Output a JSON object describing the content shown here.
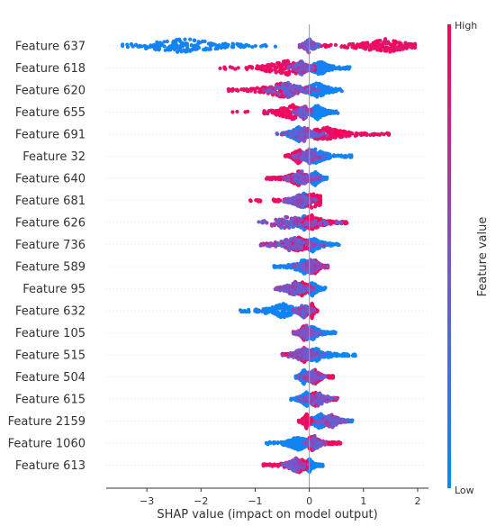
{
  "chart_data": {
    "type": "scatter",
    "subtype": "shap-beeswarm",
    "title": "",
    "xlabel": "SHAP value (impact on model output)",
    "xlim": [
      -3.75,
      2.2
    ],
    "xticks": [
      -3,
      -2,
      -1,
      0,
      1,
      2
    ],
    "xtick_labels": [
      "−3",
      "−2",
      "−1",
      "0",
      "1",
      "2"
    ],
    "colorbar": {
      "label": "Feature value",
      "high_label": "High",
      "low_label": "Low",
      "high_color": "#ff0052",
      "low_color": "#008bfb"
    },
    "features": [
      {
        "name": "Feature 637",
        "low_range": [
          -3.45,
          -0.6
        ],
        "high_range": [
          0.15,
          1.95
        ],
        "mid_range": [
          -0.2,
          0.2
        ],
        "low_peak": -2.3,
        "high_peak": 1.4
      },
      {
        "name": "Feature 618",
        "low_range": [
          0.05,
          0.75
        ],
        "high_range": [
          -1.65,
          0.1
        ],
        "mid_range": [
          -0.4,
          0.1
        ],
        "low_peak": 0.2,
        "high_peak": -0.4
      },
      {
        "name": "Feature 620",
        "low_range": [
          -0.3,
          0.6
        ],
        "high_range": [
          -1.5,
          0.0
        ],
        "mid_range": [
          -1.0,
          0.2
        ],
        "low_peak": 0.15,
        "high_peak": -0.5
      },
      {
        "name": "Feature 655",
        "low_range": [
          0.0,
          0.55
        ],
        "high_range": [
          -1.45,
          -0.1
        ],
        "mid_range": [
          -0.3,
          0.1
        ],
        "low_peak": 0.15,
        "high_peak": -0.3
      },
      {
        "name": "Feature 691",
        "low_range": [
          -0.5,
          0.15
        ],
        "high_range": [
          0.1,
          1.5
        ],
        "mid_range": [
          -0.6,
          0.4
        ],
        "low_peak": -0.2,
        "high_peak": 0.3
      },
      {
        "name": "Feature 32",
        "low_range": [
          -0.1,
          0.8
        ],
        "high_range": [
          -0.45,
          0.0
        ],
        "mid_range": [
          -0.3,
          0.3
        ],
        "low_peak": 0.1,
        "high_peak": -0.2
      },
      {
        "name": "Feature 640",
        "low_range": [
          -0.05,
          0.35
        ],
        "high_range": [
          -0.8,
          -0.05
        ],
        "mid_range": [
          -0.5,
          0.2
        ],
        "low_peak": 0.1,
        "high_peak": -0.2
      },
      {
        "name": "Feature 681",
        "low_range": [
          -0.45,
          0.1
        ],
        "high_range": [
          -1.1,
          0.2
        ],
        "mid_range": [
          -0.5,
          0.15
        ],
        "low_peak": -0.1,
        "high_peak": 0.05
      },
      {
        "name": "Feature 626",
        "low_range": [
          -0.6,
          0.1
        ],
        "high_range": [
          -0.2,
          0.7
        ],
        "mid_range": [
          -1.3,
          0.6
        ],
        "low_peak": -0.1,
        "high_peak": 0.05
      },
      {
        "name": "Feature 736",
        "low_range": [
          -0.15,
          0.55
        ],
        "high_range": [
          -0.9,
          0.0
        ],
        "mid_range": [
          -0.9,
          0.3
        ],
        "low_peak": 0.05,
        "high_peak": -0.2
      },
      {
        "name": "Feature 589",
        "low_range": [
          -0.65,
          0.1
        ],
        "high_range": [
          0.0,
          0.35
        ],
        "mid_range": [
          -0.3,
          0.35
        ],
        "low_peak": -0.1,
        "high_peak": 0.1
      },
      {
        "name": "Feature 95",
        "low_range": [
          -0.1,
          0.3
        ],
        "high_range": [
          -0.6,
          0.0
        ],
        "mid_range": [
          -0.65,
          0.1
        ],
        "low_peak": 0.05,
        "high_peak": -0.15
      },
      {
        "name": "Feature 632",
        "low_range": [
          -1.3,
          -0.2
        ],
        "high_range": [
          0.0,
          0.15
        ],
        "mid_range": [
          -0.3,
          0.1
        ],
        "low_peak": -0.5,
        "high_peak": 0.05
      },
      {
        "name": "Feature 105",
        "low_range": [
          -0.05,
          0.5
        ],
        "high_range": [
          -0.3,
          0.0
        ],
        "mid_range": [
          -0.3,
          0.2
        ],
        "low_peak": 0.05,
        "high_peak": -0.1
      },
      {
        "name": "Feature 515",
        "low_range": [
          0.0,
          0.85
        ],
        "high_range": [
          -0.5,
          0.0
        ],
        "mid_range": [
          -0.5,
          0.3
        ],
        "low_peak": 0.1,
        "high_peak": -0.1
      },
      {
        "name": "Feature 504",
        "low_range": [
          -0.25,
          0.05
        ],
        "high_range": [
          0.0,
          0.45
        ],
        "mid_range": [
          -0.2,
          0.3
        ],
        "low_peak": -0.1,
        "high_peak": 0.1
      },
      {
        "name": "Feature 615",
        "low_range": [
          -0.35,
          0.1
        ],
        "high_range": [
          0.05,
          0.55
        ],
        "mid_range": [
          -0.2,
          0.5
        ],
        "low_peak": -0.05,
        "high_peak": 0.1
      },
      {
        "name": "Feature 2159",
        "low_range": [
          0.05,
          0.8
        ],
        "high_range": [
          -0.2,
          0.05
        ],
        "mid_range": [
          0.1,
          0.7
        ],
        "low_peak": 0.2,
        "high_peak": -0.05
      },
      {
        "name": "Feature 1060",
        "low_range": [
          -0.8,
          0.0
        ],
        "high_range": [
          0.0,
          0.6
        ],
        "mid_range": [
          -0.1,
          0.3
        ],
        "low_peak": -0.2,
        "high_peak": 0.05
      },
      {
        "name": "Feature 613",
        "low_range": [
          -0.05,
          0.25
        ],
        "high_range": [
          -0.85,
          -0.05
        ],
        "mid_range": [
          -0.5,
          0.0
        ],
        "low_peak": 0.0,
        "high_peak": -0.2
      }
    ]
  }
}
